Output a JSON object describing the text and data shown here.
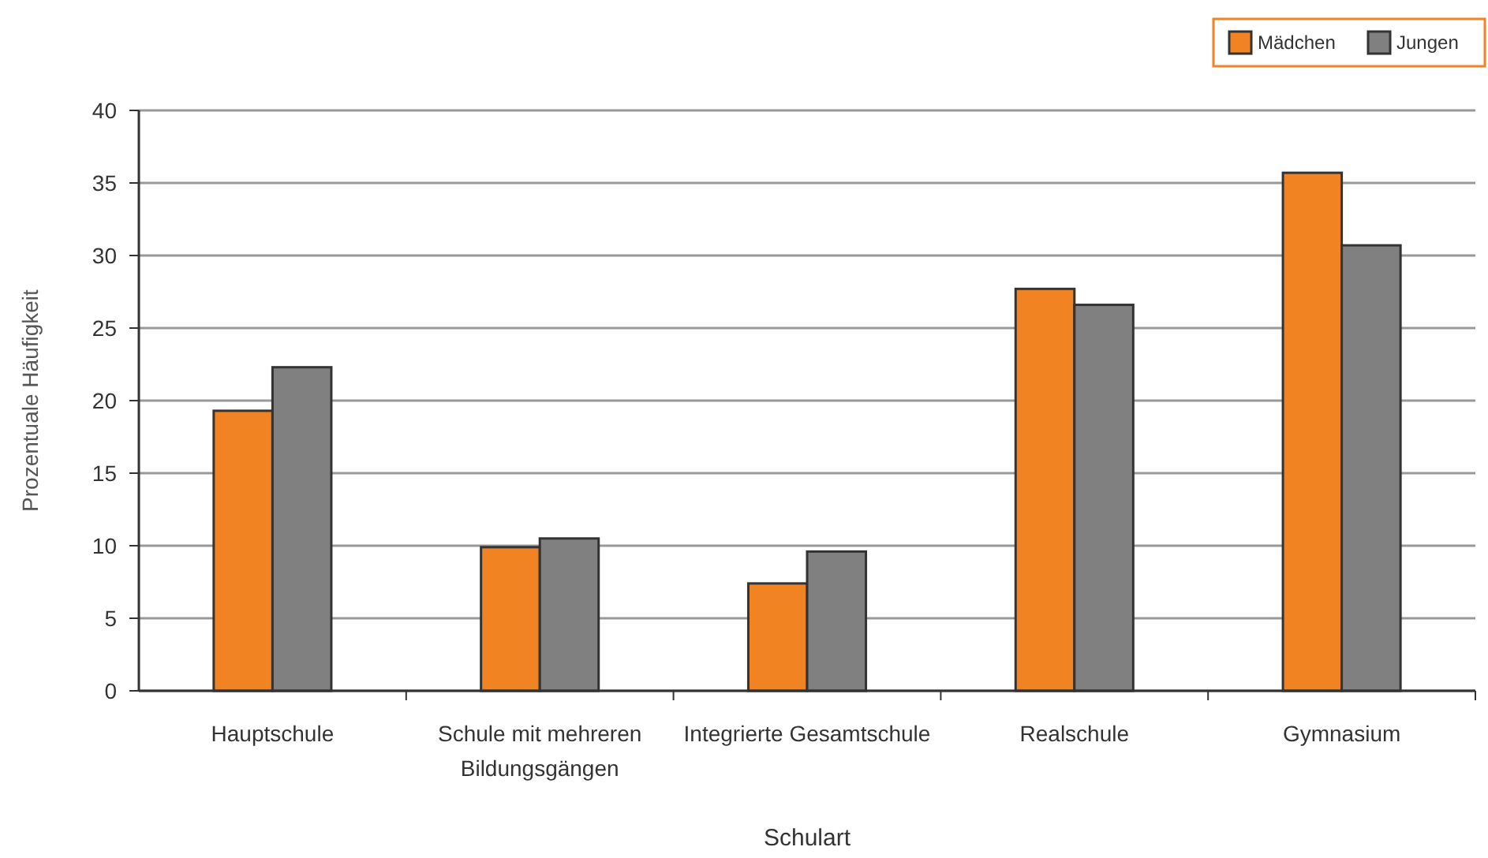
{
  "chart_data": {
    "type": "bar",
    "xlabel": "Schulart",
    "ylabel": "Prozentuale Häufigkeit",
    "categories": [
      "Hauptschule",
      "Schule mit mehreren Bildungsgängen",
      "Integrierte Gesamtschule",
      "Realschule",
      "Gymnasium"
    ],
    "series": [
      {
        "name": "Mädchen",
        "color": "#f28322",
        "values": [
          19.3,
          9.9,
          7.4,
          27.7,
          35.7
        ]
      },
      {
        "name": "Jungen",
        "color": "#808080",
        "values": [
          22.3,
          10.5,
          9.6,
          26.6,
          30.7
        ]
      }
    ],
    "ylim": [
      0,
      40
    ],
    "yticks": [
      0,
      5,
      10,
      15,
      20,
      25,
      30,
      35,
      40
    ],
    "grid": "y",
    "legend": "top right"
  }
}
